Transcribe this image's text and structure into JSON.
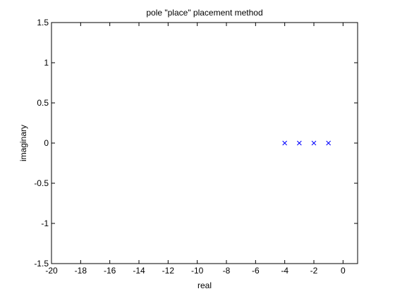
{
  "chart_data": {
    "type": "scatter",
    "title": "pole \"place\" placement method",
    "xlabel": "real",
    "ylabel": "imaginary",
    "xlim": [
      -20,
      1
    ],
    "ylim": [
      -1.5,
      1.5
    ],
    "xticks": [
      -20,
      -18,
      -16,
      -14,
      -12,
      -10,
      -8,
      -6,
      -4,
      -2,
      0
    ],
    "yticks": [
      -1.5,
      -1,
      -0.5,
      0,
      0.5,
      1,
      1.5
    ],
    "marker": "x",
    "marker_color": "#0000ff",
    "grid": false,
    "series": [
      {
        "x": [
          -4,
          -3,
          -2,
          -1
        ],
        "y": [
          0,
          0,
          0,
          0
        ]
      }
    ]
  }
}
